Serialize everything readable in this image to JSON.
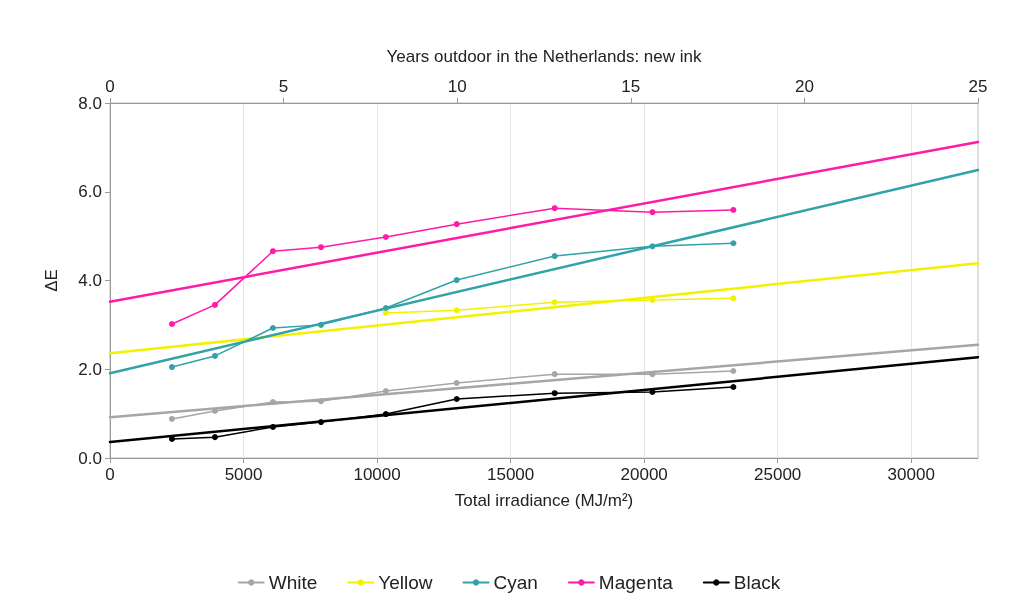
{
  "chart_data": {
    "type": "line",
    "xlabel": "Total irradiance (MJ/m²)",
    "ylabel": "ΔE",
    "x2label": "Years outdoor in the Netherlands: new ink",
    "xlim": [
      0,
      32500
    ],
    "xticks": [
      0,
      5000,
      10000,
      15000,
      20000,
      25000,
      30000
    ],
    "x2lim": [
      0,
      25
    ],
    "x2ticks": [
      0,
      5,
      10,
      15,
      20,
      25
    ],
    "ylim": [
      0,
      8
    ],
    "yticks": [
      {
        "value": 0,
        "label": "0.0"
      },
      {
        "value": 2,
        "label": "2.0"
      },
      {
        "value": 4,
        "label": "4.0"
      },
      {
        "value": 6,
        "label": "6.0"
      },
      {
        "value": 8,
        "label": "8.0"
      }
    ],
    "grid": "x",
    "legend": "bottom",
    "marker": "circle",
    "series": [
      {
        "name": "White",
        "color": "#a6a6a6",
        "x": [
          2320,
          3930,
          6100,
          7900,
          10330,
          12980,
          16650,
          20310,
          23340
        ],
        "values": [
          0.88,
          1.06,
          1.26,
          1.28,
          1.51,
          1.69,
          1.89,
          1.89,
          1.96
        ]
      },
      {
        "name": "Yellow",
        "color": "#f2f200",
        "x": [
          10330,
          12980,
          16650,
          20310,
          23340
        ],
        "values": [
          3.27,
          3.33,
          3.51,
          3.56,
          3.6
        ]
      },
      {
        "name": "Cyan",
        "color": "#31a3a8",
        "x": [
          2320,
          3930,
          6100,
          7900,
          10330,
          12980,
          16650,
          20310,
          23340
        ],
        "values": [
          2.05,
          2.3,
          2.93,
          3.0,
          3.38,
          4.01,
          4.55,
          4.77,
          4.84
        ]
      },
      {
        "name": "Magenta",
        "color": "#ff1aa8",
        "x": [
          2320,
          3930,
          6100,
          7900,
          10330,
          12980,
          16650,
          20310,
          23340
        ],
        "values": [
          3.02,
          3.45,
          4.66,
          4.75,
          4.98,
          5.27,
          5.63,
          5.54,
          5.59
        ]
      },
      {
        "name": "Black",
        "color": "#000000",
        "x": [
          2320,
          3930,
          6100,
          7900,
          10330,
          12980,
          16650,
          20310,
          23340
        ],
        "values": [
          0.43,
          0.47,
          0.7,
          0.81,
          0.99,
          1.33,
          1.46,
          1.49,
          1.6
        ]
      },
      {
        "color": "#a6a6a6",
        "marker": "none",
        "x": [
          0,
          32500
        ],
        "values": [
          0.92,
          2.55
        ]
      },
      {
        "color": "#f2f200",
        "marker": "none",
        "x": [
          0,
          32500
        ],
        "values": [
          2.36,
          4.39
        ]
      },
      {
        "color": "#31a3a8",
        "marker": "none",
        "x": [
          0,
          32500
        ],
        "values": [
          1.91,
          6.49
        ]
      },
      {
        "color": "#ff1aa8",
        "marker": "none",
        "x": [
          0,
          32500
        ],
        "values": [
          3.52,
          7.12
        ]
      },
      {
        "color": "#000000",
        "marker": "none",
        "x": [
          0,
          32500
        ],
        "values": [
          0.36,
          2.27
        ]
      }
    ]
  }
}
